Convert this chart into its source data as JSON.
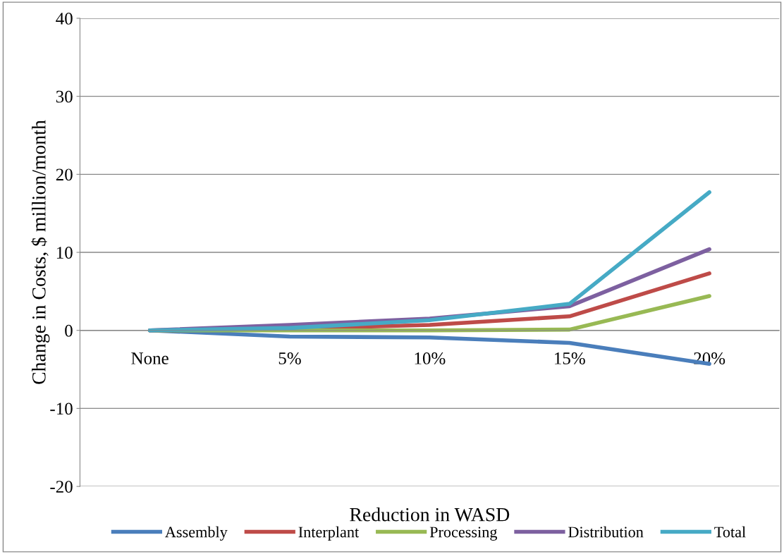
{
  "chart_data": {
    "type": "line",
    "xlabel": "Reduction in WASD",
    "ylabel": "Change in Costs, $ million/month",
    "categories": [
      "None",
      "5%",
      "10%",
      "15%",
      "20%"
    ],
    "series": [
      {
        "name": "Assembly",
        "color": "#4a7ebb",
        "values": [
          0,
          -0.8,
          -0.9,
          -1.6,
          -4.3
        ]
      },
      {
        "name": "Interplant",
        "color": "#be4b48",
        "values": [
          0,
          0.2,
          0.7,
          1.8,
          7.3
        ]
      },
      {
        "name": "Processing",
        "color": "#98b954",
        "values": [
          0,
          0,
          0,
          0.1,
          4.4
        ]
      },
      {
        "name": "Distribution",
        "color": "#7d60a0",
        "values": [
          0,
          0.7,
          1.5,
          3.1,
          10.4
        ]
      },
      {
        "name": "Total",
        "color": "#46aac5",
        "values": [
          0,
          0.3,
          1.3,
          3.4,
          17.7
        ]
      }
    ],
    "ylim": [
      -20,
      40
    ],
    "yticks": [
      -20,
      -10,
      0,
      10,
      20,
      30,
      40
    ],
    "grid": "y",
    "legend": "bottom",
    "marker": "none",
    "line_style": "solid"
  }
}
